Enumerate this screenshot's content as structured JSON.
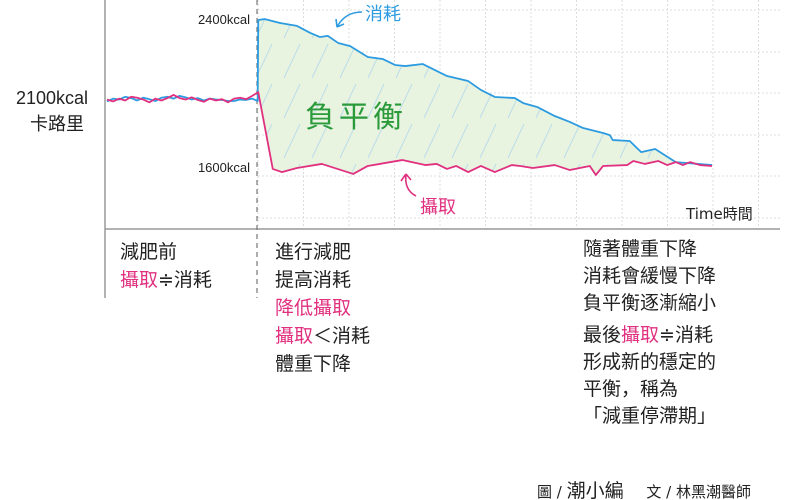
{
  "colors": {
    "intake": "#e0307f",
    "expenditure": "#2d9be0",
    "deficit_fill": "#e8f3e0",
    "deficit_text": "#2a9a3a",
    "axis": "#999999",
    "grid": "#dddddd"
  },
  "y_axis": {
    "label_value": "2100kcal",
    "label_unit": "卡路里"
  },
  "x_axis": {
    "label": "Time時間"
  },
  "chart_data": {
    "type": "line",
    "xlabel": "Time時間",
    "ylabel": "卡路里",
    "tick_labels": [
      "2400kcal",
      "1600kcal"
    ],
    "diet_start_t": 25,
    "series": [
      {
        "name": "消耗",
        "color": "#2d9be0",
        "t": [
          0,
          1,
          2,
          3,
          4,
          5,
          6,
          7,
          8,
          9,
          10,
          11,
          12,
          13,
          14,
          15,
          16,
          17,
          18,
          19,
          20,
          21,
          22,
          23,
          24,
          24.9,
          25,
          26.1,
          28.6,
          31.4,
          33.6,
          35.2,
          36.5,
          38.2,
          40.2,
          43.1,
          45.6,
          47.6,
          49.3,
          52.2,
          56.2,
          59.7,
          61.8,
          64.1,
          67.4,
          68.8,
          71.1,
          74.0,
          76.5,
          78.7,
          82.0,
          83.1,
          83.6,
          86.4,
          88.3,
          90.6,
          94.0,
          100
        ],
        "values": [
          1960,
          1975,
          1970,
          1985,
          1978,
          1965,
          1980,
          1972,
          1962,
          1980,
          1985,
          1975,
          1990,
          1982,
          1970,
          1978,
          1965,
          1975,
          1970,
          1968,
          1962,
          1962,
          1970,
          1968,
          1975,
          1962,
          2400,
          2405,
          2384,
          2368,
          2330,
          2308,
          2314,
          2276,
          2259,
          2200,
          2189,
          2157,
          2151,
          2162,
          2097,
          2070,
          2022,
          1984,
          1978,
          1951,
          1930,
          1881,
          1849,
          1816,
          1789,
          1778,
          1751,
          1746,
          1686,
          1703,
          1632,
          1616
        ]
      },
      {
        "name": "攝取",
        "color": "#e0307f",
        "t": [
          0,
          1,
          2,
          3,
          4,
          5,
          6,
          7,
          8,
          9,
          10,
          11,
          12,
          13,
          14,
          15,
          16,
          17,
          18,
          19,
          20,
          21,
          22,
          23,
          24,
          25,
          27.4,
          28.9,
          31.4,
          35.5,
          40.7,
          43.1,
          48.8,
          52.6,
          54.5,
          56.2,
          57.7,
          59.7,
          61.8,
          64.1,
          66.9,
          68.3,
          70.4,
          74.0,
          76.5,
          79.8,
          80.8,
          82.0,
          86.0,
          87.0,
          88.9,
          91.1,
          92.6,
          94.0,
          95.2,
          96.4,
          98.0,
          100
        ],
        "values": [
          1970,
          1960,
          1975,
          1965,
          1985,
          1980,
          1970,
          1955,
          1975,
          1965,
          1978,
          1995,
          1978,
          1970,
          1982,
          1968,
          1958,
          1975,
          1965,
          1972,
          1955,
          1975,
          1980,
          1972,
          1990,
          2010,
          1595,
          1578,
          1600,
          1622,
          1568,
          1611,
          1643,
          1616,
          1622,
          1595,
          1611,
          1578,
          1611,
          1578,
          1616,
          1611,
          1600,
          1616,
          1589,
          1611,
          1562,
          1611,
          1616,
          1638,
          1622,
          1638,
          1616,
          1632,
          1616,
          1632,
          1616,
          1611
        ]
      }
    ]
  },
  "annotations": {
    "expenditure": "消耗",
    "intake": "攝取",
    "deficit": "負平衡"
  },
  "blocks": {
    "before": {
      "line1": "減肥前",
      "line2_a": "攝取",
      "line2_b": "≑消耗"
    },
    "during": {
      "l1": "進行減肥",
      "l2": "提高消耗",
      "l3": "降低攝取",
      "l4_a": "攝取",
      "l4_b": "＜消耗",
      "l5": "體重下降"
    },
    "after": {
      "l1": "隨著體重下降",
      "l2": "消耗會緩慢下降",
      "l3": "負平衡逐漸縮小",
      "l4_a": "最後",
      "l4_b": "攝取",
      "l4_c": "≑消耗",
      "l5": "形成新的穩定的",
      "l6": "平衡，稱為",
      "l7": "「減重停滯期」"
    }
  },
  "credits": {
    "illustration_label": "圖 /",
    "illustrator": "潮小編",
    "text_label": "文 /",
    "author": "林黑潮醫師"
  }
}
